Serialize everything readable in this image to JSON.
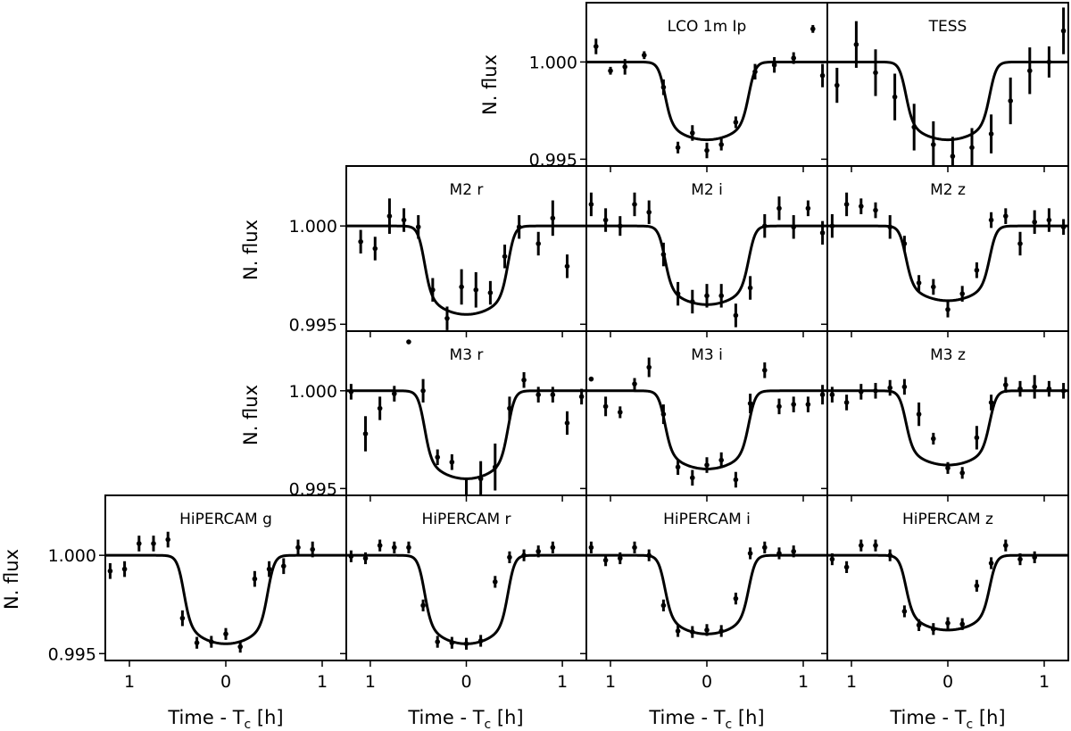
{
  "figure": {
    "y_axis_label": "N. flux",
    "x_axis_label_main": "Time - T",
    "x_axis_label_sub": "c",
    "x_axis_label_unit": " [h]",
    "y_tick_labels": [
      "1.000",
      "0.995"
    ],
    "x_tick_labels": [
      "1",
      "0",
      "1"
    ]
  },
  "chart_data": [
    {
      "type": "scatter",
      "title": "LCO 1m Ip",
      "xlim": [
        -1.25,
        1.25
      ],
      "ylim": [
        0.99465,
        1.00305
      ],
      "y_ticks": [
        0.995,
        1.0
      ],
      "x_ticks": [
        -1,
        0,
        1
      ],
      "x_tick_labels": [
        "1",
        "0",
        "1"
      ],
      "series": [
        {
          "kind": "model",
          "depth": 0.004,
          "t_half": 0.5
        },
        {
          "kind": "points",
          "x": [
            -1.15,
            -1.0,
            -0.85,
            -0.65,
            -0.45,
            -0.3,
            -0.15,
            0.0,
            0.15,
            0.3,
            0.5,
            0.7,
            0.9,
            1.1,
            1.2
          ],
          "y": [
            1.0008,
            0.99955,
            0.99975,
            1.00035,
            0.9987,
            0.9956,
            0.99635,
            0.99545,
            0.99575,
            0.9969,
            0.9995,
            0.99985,
            1.0002,
            1.0017,
            0.9993
          ],
          "err": [
            0.0004,
            0.0002,
            0.0004,
            0.0002,
            0.0004,
            0.0003,
            0.0004,
            0.0004,
            0.0003,
            0.0003,
            0.0004,
            0.0004,
            0.0003,
            0.0002,
            0.0006
          ]
        }
      ]
    },
    {
      "type": "scatter",
      "title": "TESS",
      "xlim": [
        -1.25,
        1.25
      ],
      "ylim": [
        0.99465,
        1.00305
      ],
      "y_ticks": [
        0.995,
        1.0
      ],
      "x_ticks": [
        -1,
        0,
        1
      ],
      "x_tick_labels": [
        "1",
        "0",
        "1"
      ],
      "series": [
        {
          "kind": "model",
          "depth": 0.004,
          "t_half": 0.5
        },
        {
          "kind": "points",
          "x": [
            -1.15,
            -0.95,
            -0.75,
            -0.55,
            -0.35,
            -0.15,
            0.05,
            0.25,
            0.45,
            0.65,
            0.85,
            1.05,
            1.2
          ],
          "y": [
            0.9988,
            1.0009,
            0.99945,
            0.9982,
            0.99665,
            0.99575,
            0.99515,
            0.9956,
            0.9963,
            0.998,
            0.99955,
            1.0,
            1.0016
          ],
          "err": [
            0.0009,
            0.0012,
            0.0012,
            0.0012,
            0.0012,
            0.0012,
            0.001,
            0.001,
            0.001,
            0.0012,
            0.0012,
            0.0008,
            0.0012
          ]
        }
      ]
    },
    {
      "type": "scatter",
      "title": "M2 r",
      "xlim": [
        -1.25,
        1.25
      ],
      "ylim": [
        0.99465,
        1.00305
      ],
      "y_ticks": [
        0.995,
        1.0
      ],
      "x_ticks": [
        -1,
        0,
        1
      ],
      "x_tick_labels": [
        "1",
        "0",
        "1"
      ],
      "series": [
        {
          "kind": "model",
          "depth": 0.0045,
          "t_half": 0.5
        },
        {
          "kind": "points",
          "x": [
            -1.1,
            -0.95,
            -0.8,
            -0.65,
            -0.5,
            -0.35,
            -0.2,
            -0.05,
            0.1,
            0.25,
            0.4,
            0.55,
            0.75,
            0.9,
            1.05
          ],
          "y": [
            0.9992,
            0.99885,
            1.0005,
            1.0003,
            0.99995,
            0.99675,
            0.9953,
            0.9969,
            0.99675,
            0.9966,
            0.99845,
            0.99995,
            0.9991,
            1.0004,
            0.99795
          ],
          "err": [
            0.0006,
            0.0006,
            0.0009,
            0.0006,
            0.0006,
            0.0006,
            0.0006,
            0.0009,
            0.0009,
            0.0006,
            0.0006,
            0.0006,
            0.0006,
            0.0009,
            0.0006
          ]
        }
      ]
    },
    {
      "type": "scatter",
      "title": "M2 i",
      "xlim": [
        -1.25,
        1.25
      ],
      "ylim": [
        0.99465,
        1.00305
      ],
      "y_ticks": [
        0.995,
        1.0
      ],
      "x_ticks": [
        -1,
        0,
        1
      ],
      "x_tick_labels": [
        "1",
        "0",
        "1"
      ],
      "series": [
        {
          "kind": "model",
          "depth": 0.004,
          "t_half": 0.5
        },
        {
          "kind": "points",
          "x": [
            -1.2,
            -1.05,
            -0.9,
            -0.75,
            -0.6,
            -0.45,
            -0.3,
            -0.15,
            0.0,
            0.15,
            0.3,
            0.45,
            0.6,
            0.75,
            0.9,
            1.05,
            1.2
          ],
          "y": [
            1.0011,
            1.0003,
            1.0,
            1.0011,
            1.0007,
            0.99855,
            0.99655,
            0.99615,
            0.99645,
            0.99645,
            0.99545,
            0.99685,
            1.0,
            1.0009,
            0.99995,
            1.0009,
            0.99965
          ],
          "err": [
            0.0006,
            0.0006,
            0.0005,
            0.0006,
            0.0006,
            0.0006,
            0.0006,
            0.0006,
            0.0006,
            0.0006,
            0.0006,
            0.0006,
            0.0006,
            0.0006,
            0.0006,
            0.0004,
            0.0006
          ]
        }
      ]
    },
    {
      "type": "scatter",
      "title": "M2 z",
      "xlim": [
        -1.25,
        1.25
      ],
      "ylim": [
        0.99465,
        1.00305
      ],
      "y_ticks": [
        0.995,
        1.0
      ],
      "x_ticks": [
        -1,
        0,
        1
      ],
      "x_tick_labels": [
        "1",
        "0",
        "1"
      ],
      "series": [
        {
          "kind": "model",
          "depth": 0.0038,
          "t_half": 0.5
        },
        {
          "kind": "points",
          "x": [
            -1.2,
            -1.05,
            -0.9,
            -0.75,
            -0.6,
            -0.45,
            -0.3,
            -0.15,
            0.0,
            0.15,
            0.3,
            0.45,
            0.6,
            0.75,
            0.9,
            1.05,
            1.2
          ],
          "y": [
            1.0,
            1.0011,
            1.001,
            1.0008,
            0.99995,
            0.9991,
            0.9971,
            0.9969,
            0.99575,
            0.99655,
            0.99775,
            1.0003,
            1.0005,
            0.9991,
            1.0002,
            1.0003,
            0.99995
          ],
          "err": [
            0.0006,
            0.0006,
            0.0004,
            0.0004,
            0.0006,
            0.0004,
            0.0004,
            0.0004,
            0.0004,
            0.0004,
            0.0004,
            0.0004,
            0.0004,
            0.0006,
            0.0006,
            0.0006,
            0.0004
          ]
        }
      ]
    },
    {
      "type": "scatter",
      "title": "M3 r",
      "xlim": [
        -1.25,
        1.25
      ],
      "ylim": [
        0.99465,
        1.00305
      ],
      "y_ticks": [
        0.995,
        1.0
      ],
      "x_ticks": [
        -1,
        0,
        1
      ],
      "x_tick_labels": [
        "1",
        "0",
        "1"
      ],
      "series": [
        {
          "kind": "model",
          "depth": 0.0045,
          "t_half": 0.5
        },
        {
          "kind": "points",
          "x": [
            -1.2,
            -1.05,
            -0.9,
            -0.75,
            -0.6,
            -0.45,
            -0.3,
            -0.15,
            0.0,
            0.15,
            0.3,
            0.45,
            0.6,
            0.75,
            0.9,
            1.05,
            1.2
          ],
          "y": [
            0.99995,
            0.9978,
            0.9991,
            0.99985,
            1.0025,
            1.0,
            0.9966,
            0.99635,
            0.99455,
            0.9955,
            0.9961,
            0.9991,
            1.00055,
            0.9998,
            0.9998,
            0.99835,
            0.9997
          ],
          "err": [
            0.0004,
            0.0009,
            0.0006,
            0.0004,
            0.0,
            0.0006,
            0.0004,
            0.0004,
            0.0009,
            0.0009,
            0.0012,
            0.0006,
            0.0004,
            0.0004,
            0.0004,
            0.0006,
            0.0004
          ]
        }
      ]
    },
    {
      "type": "scatter",
      "title": "M3 i",
      "xlim": [
        -1.25,
        1.25
      ],
      "ylim": [
        0.99465,
        1.00305
      ],
      "y_ticks": [
        0.995,
        1.0
      ],
      "x_ticks": [
        -1,
        0,
        1
      ],
      "x_tick_labels": [
        "1",
        "0",
        "1"
      ],
      "series": [
        {
          "kind": "model",
          "depth": 0.004,
          "t_half": 0.5
        },
        {
          "kind": "points",
          "x": [
            -1.2,
            -1.05,
            -0.9,
            -0.75,
            -0.6,
            -0.45,
            -0.3,
            -0.15,
            0.0,
            0.15,
            0.3,
            0.45,
            0.6,
            0.75,
            0.9,
            1.05,
            1.2
          ],
          "y": [
            1.0006,
            0.9992,
            0.9989,
            1.00035,
            1.0012,
            0.9988,
            0.9961,
            0.99555,
            0.9962,
            0.99645,
            0.99545,
            0.99935,
            1.00105,
            0.9992,
            0.9993,
            0.9993,
            0.9998
          ],
          "err": [
            0.0,
            0.0005,
            0.0003,
            0.0003,
            0.0005,
            0.0005,
            0.0004,
            0.0004,
            0.0004,
            0.0004,
            0.0004,
            0.0005,
            0.0004,
            0.0004,
            0.0004,
            0.0004,
            0.0005
          ]
        }
      ]
    },
    {
      "type": "scatter",
      "title": "M3 z",
      "xlim": [
        -1.25,
        1.25
      ],
      "ylim": [
        0.99465,
        1.00305
      ],
      "y_ticks": [
        0.995,
        1.0
      ],
      "x_ticks": [
        -1,
        0,
        1
      ],
      "x_tick_labels": [
        "1",
        "0",
        "1"
      ],
      "series": [
        {
          "kind": "model",
          "depth": 0.0038,
          "t_half": 0.5
        },
        {
          "kind": "points",
          "x": [
            -1.2,
            -1.05,
            -0.9,
            -0.75,
            -0.6,
            -0.45,
            -0.3,
            -0.15,
            0.0,
            0.15,
            0.3,
            0.45,
            0.6,
            0.75,
            0.9,
            1.05,
            1.2
          ],
          "y": [
            0.9998,
            0.9994,
            0.99995,
            1.0,
            1.00015,
            1.0002,
            0.9988,
            0.99755,
            0.99605,
            0.9958,
            0.9976,
            0.9994,
            1.0003,
            1.0001,
            1.0002,
            1.0001,
            1.0
          ],
          "err": [
            0.0004,
            0.0004,
            0.0004,
            0.0004,
            0.0004,
            0.0004,
            0.0006,
            0.0003,
            0.0003,
            0.0003,
            0.0006,
            0.0004,
            0.0004,
            0.0004,
            0.0006,
            0.0004,
            0.0004
          ]
        }
      ]
    },
    {
      "type": "scatter",
      "title": "HiPERCAM g",
      "xlim": [
        -1.25,
        1.25
      ],
      "ylim": [
        0.99465,
        1.00305
      ],
      "y_ticks": [
        0.995,
        1.0
      ],
      "x_ticks": [
        -1,
        0,
        1
      ],
      "x_tick_labels": [
        "1",
        "0",
        "1"
      ],
      "series": [
        {
          "kind": "model",
          "depth": 0.0045,
          "t_half": 0.5
        },
        {
          "kind": "points",
          "x": [
            -1.2,
            -1.05,
            -0.9,
            -0.75,
            -0.6,
            -0.45,
            -0.3,
            -0.15,
            0.0,
            0.15,
            0.3,
            0.45,
            0.6,
            0.75,
            0.9
          ],
          "y": [
            0.9992,
            0.9993,
            1.0006,
            1.0006,
            1.0008,
            0.9968,
            0.99555,
            0.9956,
            0.996,
            0.99535,
            0.9988,
            0.9993,
            0.99945,
            1.0004,
            1.0003
          ],
          "err": [
            0.0004,
            0.0004,
            0.0004,
            0.0004,
            0.0004,
            0.0004,
            0.0003,
            0.0003,
            0.0003,
            0.0003,
            0.0004,
            0.0004,
            0.0004,
            0.0004,
            0.0004
          ]
        }
      ]
    },
    {
      "type": "scatter",
      "title": "HiPERCAM r",
      "xlim": [
        -1.25,
        1.25
      ],
      "ylim": [
        0.99465,
        1.00305
      ],
      "y_ticks": [
        0.995,
        1.0
      ],
      "x_ticks": [
        -1,
        0,
        1
      ],
      "x_tick_labels": [
        "1",
        "0",
        "1"
      ],
      "series": [
        {
          "kind": "model",
          "depth": 0.0045,
          "t_half": 0.5
        },
        {
          "kind": "points",
          "x": [
            -1.2,
            -1.05,
            -0.9,
            -0.75,
            -0.6,
            -0.45,
            -0.3,
            -0.15,
            0.0,
            0.15,
            0.3,
            0.45,
            0.6,
            0.75,
            0.9
          ],
          "y": [
            0.99995,
            0.99985,
            1.0005,
            1.0004,
            1.0004,
            0.99745,
            0.9956,
            0.99555,
            0.9955,
            0.99565,
            0.99865,
            0.9999,
            1.0,
            1.0002,
            1.0004
          ],
          "err": [
            0.0003,
            0.0003,
            0.0003,
            0.0003,
            0.0003,
            0.0003,
            0.0003,
            0.0003,
            0.0003,
            0.0003,
            0.0003,
            0.0003,
            0.0003,
            0.0003,
            0.0003
          ]
        }
      ]
    },
    {
      "type": "scatter",
      "title": "HiPERCAM i",
      "xlim": [
        -1.25,
        1.25
      ],
      "ylim": [
        0.99465,
        1.00305
      ],
      "y_ticks": [
        0.995,
        1.0
      ],
      "x_ticks": [
        -1,
        0,
        1
      ],
      "x_tick_labels": [
        "1",
        "0",
        "1"
      ],
      "series": [
        {
          "kind": "model",
          "depth": 0.004,
          "t_half": 0.5
        },
        {
          "kind": "points",
          "x": [
            -1.2,
            -1.05,
            -0.9,
            -0.75,
            -0.6,
            -0.45,
            -0.3,
            -0.15,
            0.0,
            0.15,
            0.3,
            0.45,
            0.6,
            0.75,
            0.9
          ],
          "y": [
            1.0004,
            0.99975,
            0.99985,
            1.0004,
            1.0,
            0.99745,
            0.99615,
            0.9961,
            0.9962,
            0.99615,
            0.9978,
            1.0001,
            1.0004,
            1.0001,
            1.0002
          ],
          "err": [
            0.0003,
            0.0003,
            0.0003,
            0.0003,
            0.0003,
            0.0003,
            0.0003,
            0.0003,
            0.0003,
            0.0003,
            0.0003,
            0.0003,
            0.0003,
            0.0003,
            0.0003
          ]
        }
      ]
    },
    {
      "type": "scatter",
      "title": "HiPERCAM z",
      "xlim": [
        -1.25,
        1.25
      ],
      "ylim": [
        0.99465,
        1.00305
      ],
      "y_ticks": [
        0.995,
        1.0
      ],
      "x_ticks": [
        -1,
        0,
        1
      ],
      "x_tick_labels": [
        "1",
        "0",
        "1"
      ],
      "series": [
        {
          "kind": "model",
          "depth": 0.0038,
          "t_half": 0.5
        },
        {
          "kind": "points",
          "x": [
            -1.2,
            -1.05,
            -0.9,
            -0.75,
            -0.6,
            -0.45,
            -0.3,
            -0.15,
            0.0,
            0.15,
            0.3,
            0.45,
            0.6,
            0.75,
            0.9
          ],
          "y": [
            0.9998,
            0.9994,
            1.0005,
            1.0005,
            1.0,
            0.99715,
            0.99645,
            0.99625,
            0.99655,
            0.9965,
            0.99845,
            0.9996,
            1.0005,
            0.9998,
            0.9999
          ],
          "err": [
            0.0003,
            0.0003,
            0.0003,
            0.0003,
            0.0003,
            0.0003,
            0.0003,
            0.0003,
            0.0003,
            0.0003,
            0.0003,
            0.0003,
            0.0003,
            0.0003,
            0.0003
          ]
        }
      ]
    }
  ]
}
